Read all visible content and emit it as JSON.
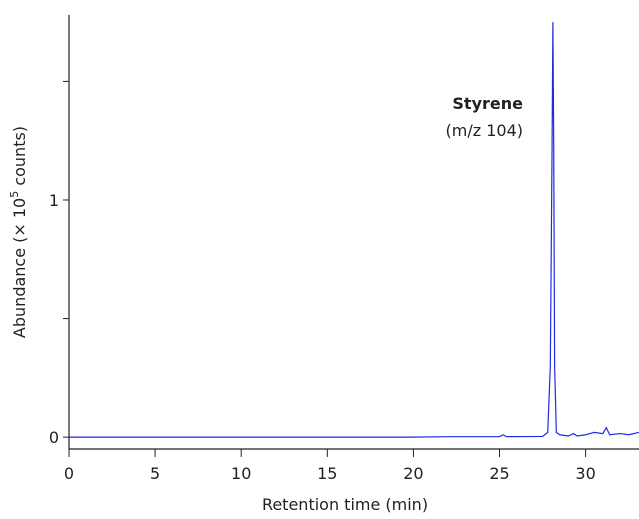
{
  "chart_data": {
    "type": "line",
    "xlabel": "Retention time (min)",
    "ylabel": {
      "text": "Abundance (× 10",
      "sup": "5",
      "rest": " counts)"
    },
    "annotation": {
      "name": "Styrene",
      "detail": "(m/z 104)"
    },
    "x": [
      0,
      5,
      10,
      15,
      20,
      22,
      25,
      25.2,
      25.4,
      27.5,
      27.8,
      27.95,
      28.05,
      28.1,
      28.15,
      28.2,
      28.3,
      28.5,
      29,
      29.3,
      29.5,
      30,
      30.5,
      31,
      31.2,
      31.4,
      32,
      32.5,
      33.1
    ],
    "series": [
      {
        "color": "#1f2be0",
        "values": [
          0,
          0,
          0,
          0,
          0,
          0.002,
          0.002,
          0.01,
          0.002,
          0.003,
          0.02,
          0.3,
          1.2,
          1.75,
          1.2,
          0.3,
          0.02,
          0.01,
          0.005,
          0.015,
          0.005,
          0.01,
          0.02,
          0.015,
          0.04,
          0.01,
          0.015,
          0.01,
          0.02
        ]
      }
    ],
    "xlim": [
      0,
      33.1
    ],
    "ylim": [
      -0.05,
      1.78
    ],
    "xticks": [
      0,
      5,
      10,
      15,
      20,
      25,
      30
    ],
    "yticks": [
      0,
      1
    ],
    "yminor_ticks": [
      0.5,
      1.5
    ]
  }
}
